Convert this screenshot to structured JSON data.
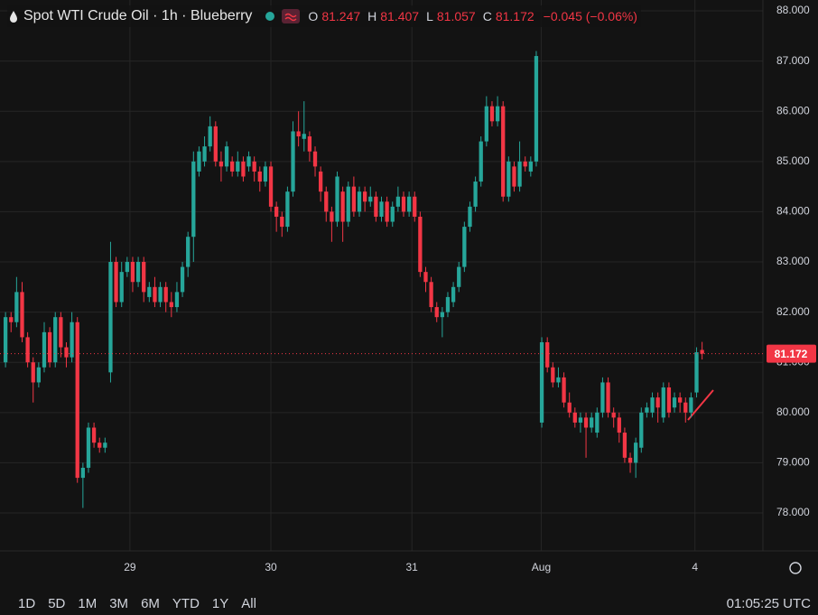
{
  "chart_data": {
    "type": "candlestick",
    "title": "Spot WTI Crude Oil · 1h · Blueberry",
    "ohlc_keys": [
      "O",
      "H",
      "L",
      "C"
    ],
    "change": "−0.045 (−0.06%)",
    "up_color": "#26a69a",
    "down_color": "#f23645",
    "open": [
      81.0,
      81.9,
      81.8,
      82.4,
      81.5,
      81.0,
      80.6,
      80.9,
      81.6,
      81.0,
      81.9,
      81.3,
      81.1,
      81.8,
      78.7,
      78.9,
      79.7,
      79.4,
      79.3,
      80.8,
      83.0,
      82.2,
      82.8,
      83.0,
      82.6,
      83.0,
      82.3,
      82.5,
      82.2,
      82.5,
      82.2,
      82.1,
      82.4,
      82.9,
      83.5,
      84.8,
      85.0,
      85.3,
      85.7,
      85.0,
      84.9,
      85.0,
      84.8,
      85.0,
      84.9,
      85.0,
      84.8,
      84.6,
      84.9,
      84.1,
      83.9,
      83.7,
      84.4,
      85.6,
      85.45,
      85.5,
      85.2,
      84.8,
      84.4,
      84.0,
      83.8,
      84.4,
      83.8,
      84.5,
      84.0,
      84.4,
      84.2,
      84.3,
      83.9,
      84.2,
      83.8,
      84.1,
      84.3,
      84.0,
      84.3,
      83.9,
      82.8,
      82.6,
      82.1,
      81.9,
      82.0,
      82.2,
      82.5,
      82.9,
      83.7,
      84.1,
      84.6,
      85.4,
      86.1,
      85.8,
      86.1,
      84.3,
      84.9,
      84.5,
      85.0,
      84.8,
      85.0,
      79.8,
      81.4,
      80.9,
      80.6,
      80.7,
      80.2,
      80.0,
      79.8,
      79.9,
      79.7,
      79.6,
      80.0,
      80.6,
      80.0,
      79.9,
      79.6,
      79.1,
      79.0,
      79.3,
      80.0,
      80.0,
      80.3,
      79.9,
      80.5,
      80.1,
      80.3,
      80.2,
      80.0,
      80.4,
      81.247
    ],
    "high": [
      82.0,
      82.0,
      82.7,
      82.6,
      81.6,
      81.1,
      81.0,
      81.8,
      81.7,
      82.0,
      82.0,
      81.4,
      82.0,
      81.9,
      79.0,
      79.8,
      79.8,
      79.5,
      79.5,
      83.4,
      83.1,
      83.0,
      83.1,
      83.1,
      83.1,
      83.1,
      82.6,
      82.7,
      82.6,
      82.6,
      82.4,
      82.6,
      83.0,
      83.6,
      85.2,
      85.3,
      85.5,
      85.9,
      85.8,
      85.2,
      85.4,
      85.1,
      85.2,
      85.1,
      85.2,
      85.1,
      84.9,
      85.0,
      85.0,
      84.2,
      84.0,
      84.5,
      85.8,
      86.0,
      86.2,
      85.6,
      85.3,
      84.9,
      84.5,
      84.1,
      84.8,
      84.5,
      84.6,
      84.7,
      84.5,
      84.5,
      84.5,
      84.4,
      84.3,
      84.3,
      84.2,
      84.5,
      84.4,
      84.4,
      84.4,
      84.0,
      82.9,
      82.7,
      82.2,
      82.1,
      82.4,
      82.6,
      83.0,
      83.8,
      84.2,
      84.7,
      85.5,
      86.3,
      86.2,
      86.3,
      86.2,
      85.1,
      85.0,
      85.4,
      85.1,
      85.1,
      87.2,
      81.5,
      81.5,
      81.0,
      80.9,
      80.8,
      80.4,
      80.1,
      80.0,
      80.0,
      80.0,
      80.1,
      80.7,
      80.7,
      80.1,
      80.0,
      79.7,
      79.2,
      79.5,
      80.1,
      80.2,
      80.4,
      80.4,
      80.6,
      80.6,
      80.4,
      80.4,
      80.3,
      80.4,
      81.3,
      81.407
    ],
    "low": [
      80.9,
      81.6,
      81.7,
      81.4,
      80.9,
      80.2,
      80.5,
      80.8,
      80.9,
      80.9,
      81.1,
      80.9,
      81.0,
      78.6,
      78.1,
      78.8,
      79.3,
      79.2,
      79.2,
      80.6,
      82.1,
      82.1,
      82.7,
      82.4,
      82.5,
      82.2,
      82.2,
      82.1,
      82.1,
      82.0,
      81.9,
      82.0,
      82.3,
      82.7,
      83.0,
      84.7,
      84.9,
      85.2,
      84.9,
      84.6,
      84.8,
      84.7,
      84.7,
      84.6,
      84.8,
      84.6,
      84.4,
      84.5,
      84.0,
      83.6,
      83.5,
      83.6,
      84.3,
      85.3,
      85.2,
      85.0,
      84.7,
      84.2,
      83.8,
      83.4,
      83.7,
      83.4,
      83.7,
      83.9,
      83.9,
      84.0,
      84.1,
      83.8,
      83.8,
      83.7,
      83.7,
      84.0,
      83.9,
      83.9,
      83.8,
      82.7,
      82.4,
      82.0,
      81.8,
      81.5,
      81.9,
      82.1,
      82.4,
      82.8,
      83.6,
      84.0,
      84.5,
      85.3,
      85.7,
      85.7,
      84.2,
      84.2,
      84.4,
      84.4,
      84.8,
      84.7,
      84.9,
      79.7,
      80.8,
      80.5,
      80.5,
      80.1,
      79.9,
      79.7,
      79.6,
      79.1,
      79.6,
      79.5,
      79.9,
      79.9,
      79.7,
      79.4,
      79.0,
      78.8,
      78.7,
      79.2,
      79.9,
      79.9,
      79.8,
      79.8,
      79.9,
      80.0,
      80.0,
      79.8,
      79.9,
      80.3,
      81.057
    ],
    "close": [
      81.9,
      81.8,
      82.4,
      81.5,
      81.0,
      80.6,
      80.9,
      81.6,
      81.0,
      81.9,
      81.3,
      81.1,
      81.8,
      78.7,
      78.9,
      79.7,
      79.4,
      79.3,
      79.4,
      83.0,
      82.2,
      82.8,
      83.0,
      82.6,
      83.0,
      82.4,
      82.5,
      82.2,
      82.5,
      82.2,
      82.1,
      82.4,
      82.9,
      83.5,
      85.0,
      85.2,
      85.3,
      85.7,
      85.0,
      84.9,
      85.3,
      84.8,
      85.0,
      84.7,
      85.1,
      84.8,
      84.6,
      84.9,
      84.1,
      83.9,
      83.7,
      84.4,
      85.6,
      85.5,
      85.55,
      85.2,
      84.9,
      84.4,
      84.0,
      83.8,
      84.7,
      83.8,
      84.5,
      84.0,
      84.4,
      84.2,
      84.3,
      83.9,
      84.2,
      83.8,
      84.1,
      84.3,
      84.0,
      84.3,
      83.9,
      82.8,
      82.6,
      82.1,
      81.9,
      82.0,
      82.3,
      82.5,
      82.9,
      83.7,
      84.1,
      84.6,
      85.4,
      86.1,
      85.8,
      86.1,
      84.3,
      85.0,
      84.5,
      85.0,
      84.9,
      85.0,
      87.1,
      81.4,
      80.9,
      80.6,
      80.7,
      80.2,
      80.0,
      79.8,
      79.9,
      79.7,
      79.9,
      80.0,
      80.6,
      80.0,
      79.9,
      79.6,
      79.1,
      79.0,
      79.4,
      80.0,
      80.1,
      80.3,
      80.1,
      80.5,
      80.0,
      80.3,
      80.2,
      80.0,
      80.3,
      81.2,
      81.172
    ],
    "xlim": [
      -1,
      137
    ],
    "xticks": [
      {
        "value": 22.5,
        "label": "29"
      },
      {
        "value": 48,
        "label": "30"
      },
      {
        "value": 73.5,
        "label": "31"
      },
      {
        "value": 96.9,
        "label": "Aug"
      },
      {
        "value": 124.7,
        "label": "4"
      }
    ],
    "ylim": [
      77.245,
      88.216
    ],
    "yticks": [
      {
        "value": 78,
        "label": "78.000"
      },
      {
        "value": 79,
        "label": "79.000"
      },
      {
        "value": 80,
        "label": "80.000"
      },
      {
        "value": 81,
        "label": "81.000"
      },
      {
        "value": 82,
        "label": "82.000"
      },
      {
        "value": 83,
        "label": "83.000"
      },
      {
        "value": 84,
        "label": "84.000"
      },
      {
        "value": 85,
        "label": "85.000"
      },
      {
        "value": 86,
        "label": "86.000"
      },
      {
        "value": 87,
        "label": "87.000"
      },
      {
        "value": 88,
        "label": "88.000"
      }
    ],
    "grid": true
  },
  "toolbar": {
    "ranges": [
      "1D",
      "5D",
      "1M",
      "3M",
      "6M",
      "YTD",
      "1Y",
      "All"
    ],
    "clock": "01:05:25 UTC"
  }
}
